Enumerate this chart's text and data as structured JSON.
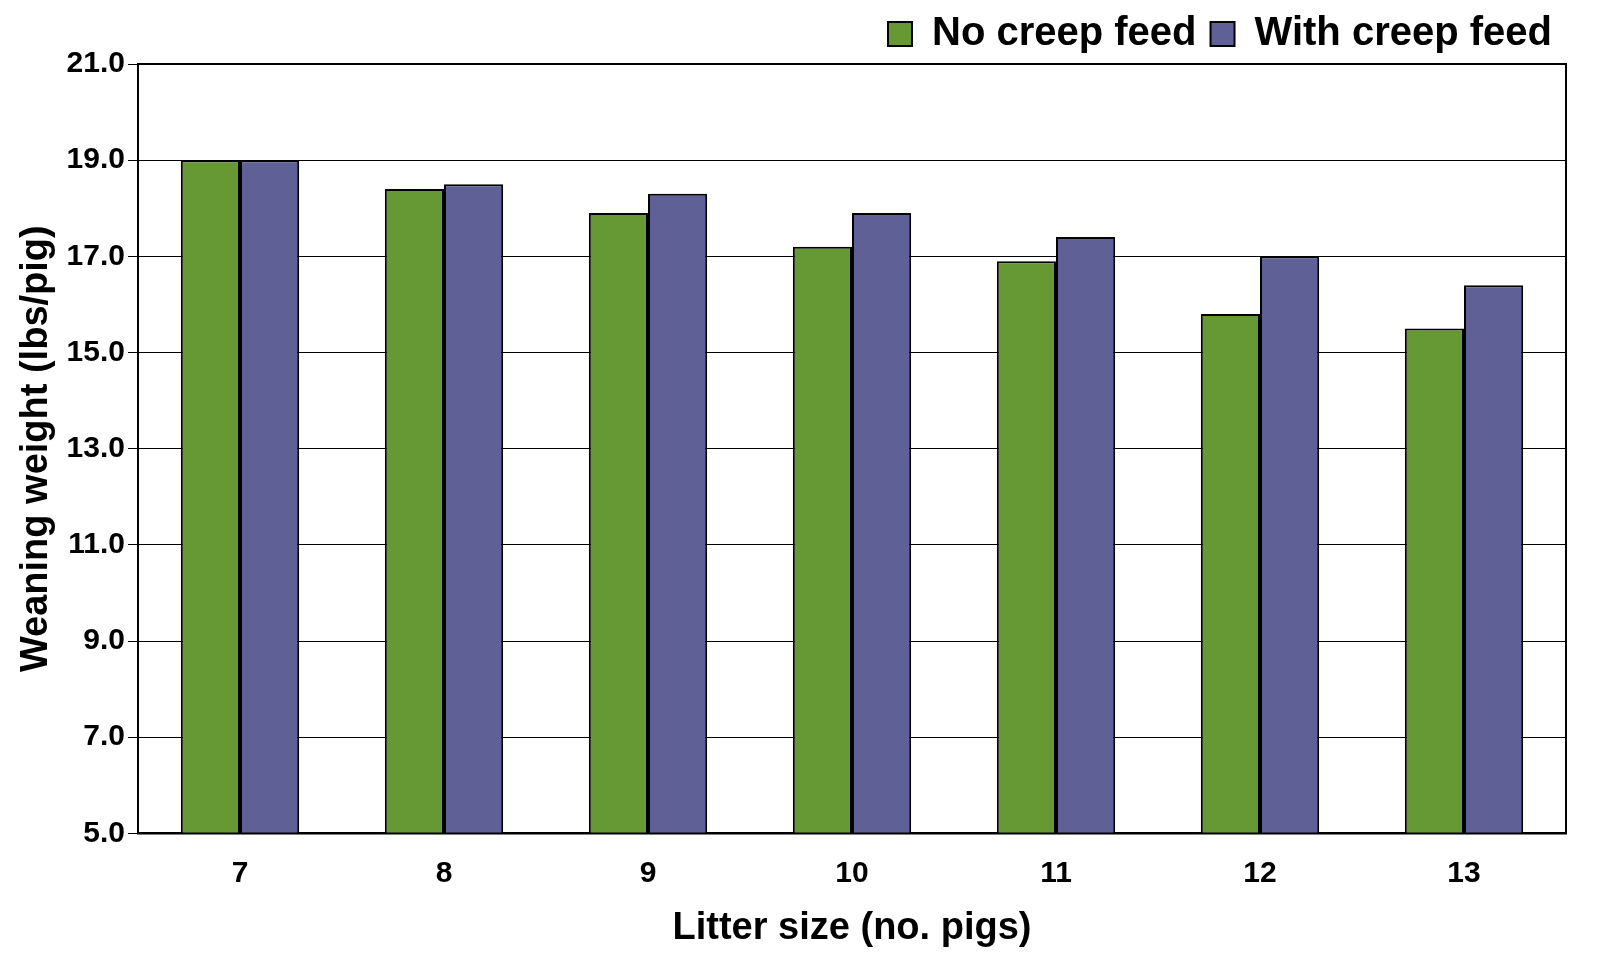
{
  "chart_data": {
    "type": "bar",
    "xlabel": "Litter size (no. pigs)",
    "ylabel": "Weaning weight (lbs/pig)",
    "categories": [
      "7",
      "8",
      "9",
      "10",
      "11",
      "12",
      "13"
    ],
    "series": [
      {
        "name": "No creep feed",
        "color": "#669933",
        "values": [
          19.0,
          18.4,
          17.9,
          17.2,
          16.9,
          15.8,
          15.5
        ]
      },
      {
        "name": "With creep feed",
        "color": "#5f6196",
        "values": [
          19.0,
          18.5,
          18.3,
          17.9,
          17.4,
          17.0,
          16.4
        ]
      }
    ],
    "ylim": [
      5,
      21
    ],
    "yticks": [
      {
        "value": 5,
        "label": "5.0"
      },
      {
        "value": 7,
        "label": "7.0"
      },
      {
        "value": 9,
        "label": "9.0"
      },
      {
        "value": 11,
        "label": "11.0"
      },
      {
        "value": 13,
        "label": "13.0"
      },
      {
        "value": 15,
        "label": "15.0"
      },
      {
        "value": 17,
        "label": "17.0"
      },
      {
        "value": 19,
        "label": "19.0"
      },
      {
        "value": 21,
        "label": "21.0"
      }
    ],
    "grid": "y",
    "legend": "top right"
  }
}
